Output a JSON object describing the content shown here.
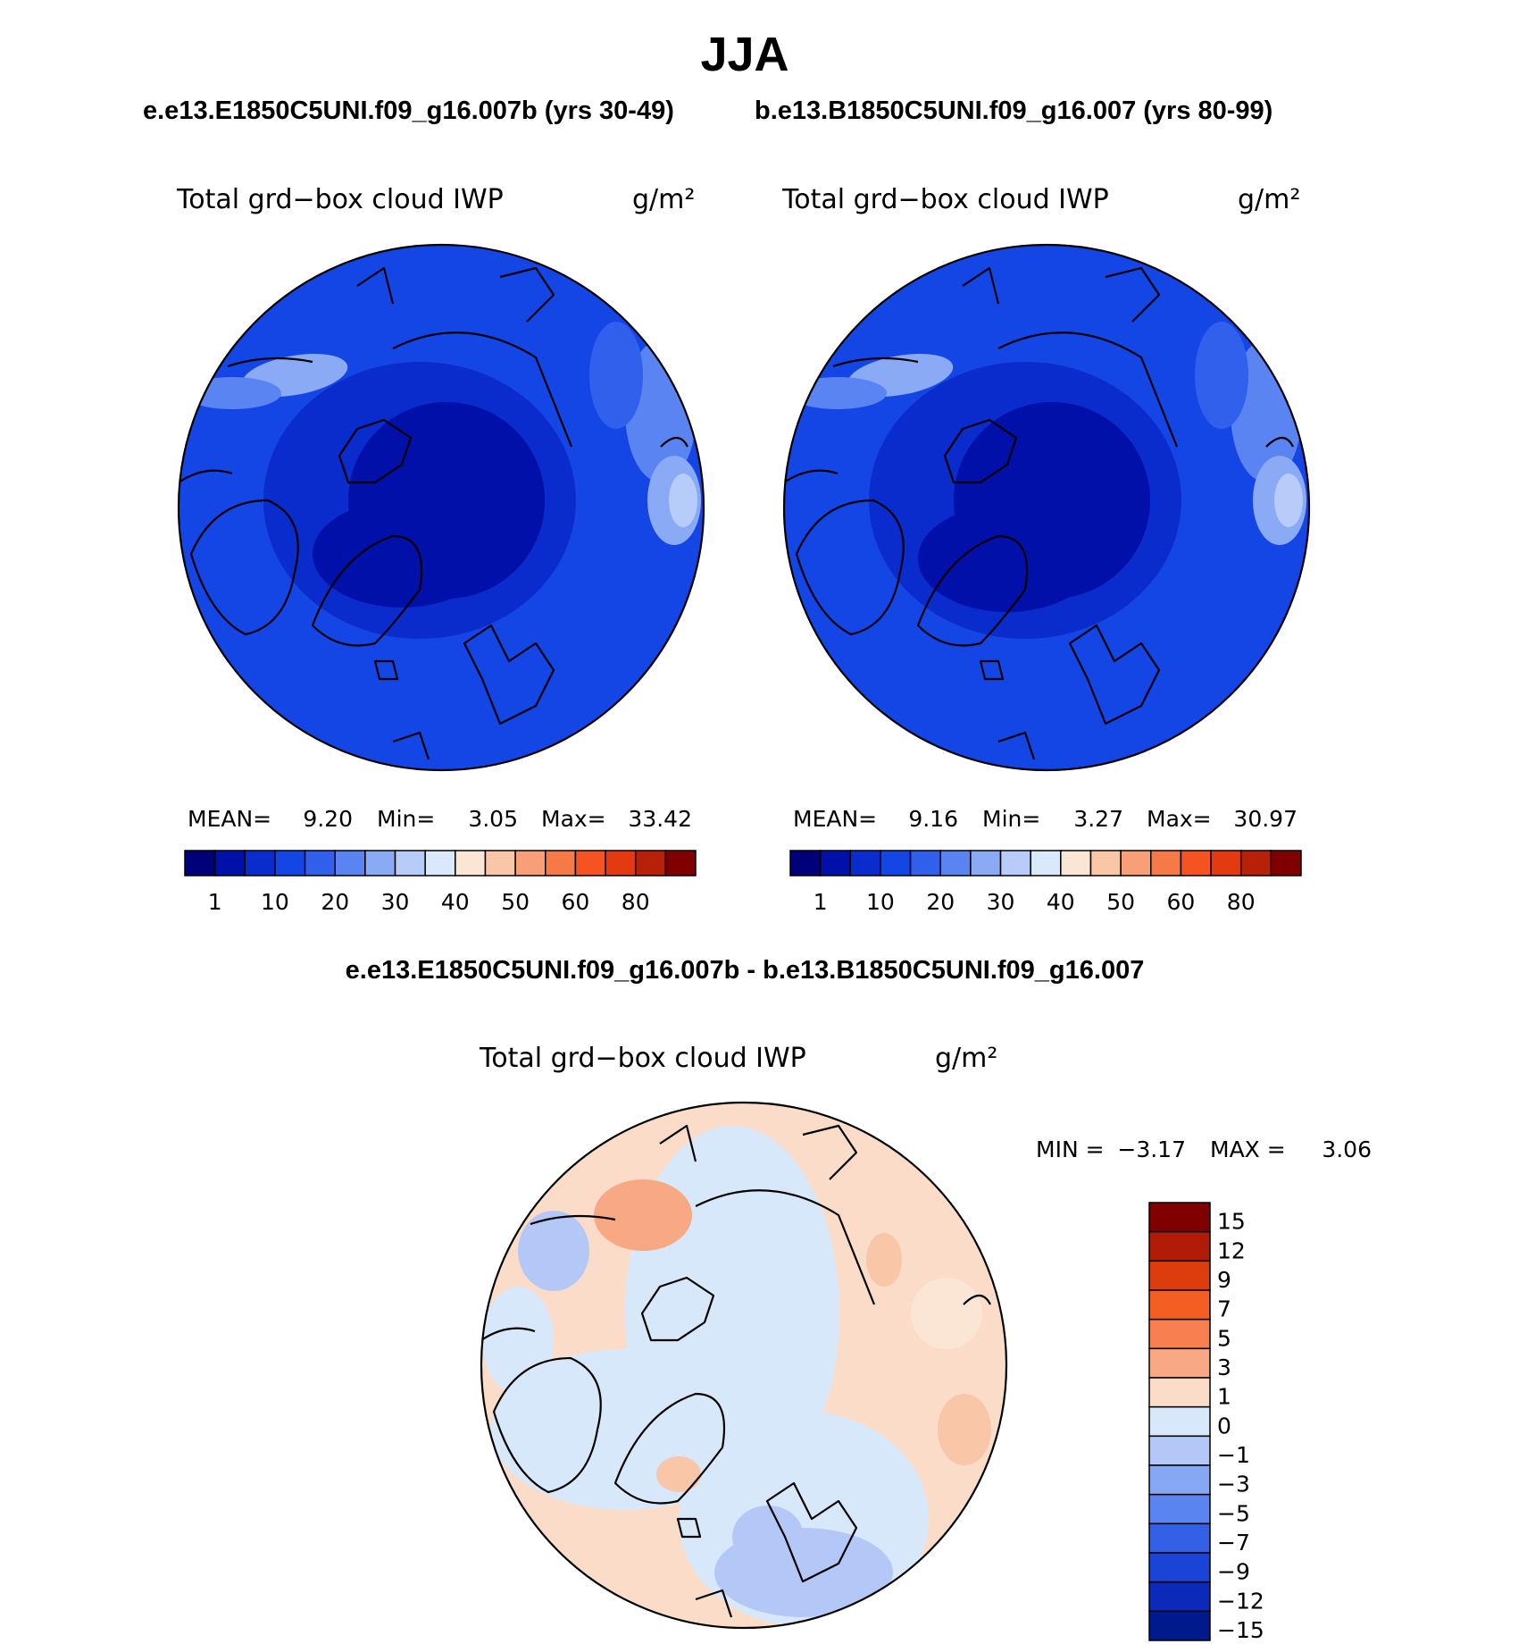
{
  "title": "JJA",
  "top_subtitle_left": "e.e13.E1850C5UNI.f09_g16.007b (yrs 30-49)",
  "top_subtitle_right": "b.e13.B1850C5UNI.f09_g16.007 (yrs 80-99)",
  "diff_subtitle": "e.e13.E1850C5UNI.f09_g16.007b - b.e13.B1850C5UNI.f09_g16.007",
  "abs_colors": [
    "#00007a",
    "#0010a8",
    "#0a2ccc",
    "#1446e6",
    "#3060ec",
    "#5a84f2",
    "#8aaaf6",
    "#b8ccfa",
    "#dae8fb",
    "#fbe6d6",
    "#f9c6a8",
    "#f89e78",
    "#f67a48",
    "#f65322",
    "#e43a10",
    "#b82008",
    "#800000"
  ],
  "diff_colors": [
    "#800000",
    "#b01c08",
    "#dd3c0c",
    "#f55e22",
    "#f88050",
    "#f9a884",
    "#fbdcc8",
    "#d8e8fb",
    "#b4c8f7",
    "#86a8f4",
    "#5a84ef",
    "#3460e6",
    "#1a44d6",
    "#0c2aba",
    "#001a8e"
  ],
  "chart_data": [
    {
      "type": "heatmap",
      "projection": "north polar stereographic",
      "title": "Total grd−box cloud IWP",
      "units": "g/m²",
      "mean_label": "MEAN=",
      "mean": "9.20",
      "min_label": "Min=",
      "min": "3.05",
      "max_label": "Max=",
      "max": "33.42",
      "colorbar_orientation": "horizontal",
      "colorbar_ticks": [
        "1",
        "10",
        "20",
        "30",
        "40",
        "50",
        "60",
        "80"
      ]
    },
    {
      "type": "heatmap",
      "projection": "north polar stereographic",
      "title": "Total grd−box cloud IWP",
      "units": "g/m²",
      "mean_label": "MEAN=",
      "mean": "9.16",
      "min_label": "Min=",
      "min": "3.27",
      "max_label": "Max=",
      "max": "30.97",
      "colorbar_orientation": "horizontal",
      "colorbar_ticks": [
        "1",
        "10",
        "20",
        "30",
        "40",
        "50",
        "60",
        "80"
      ]
    },
    {
      "type": "heatmap",
      "projection": "north polar stereographic",
      "title": "Total grd−box cloud IWP",
      "units": "g/m²",
      "min_label": "MIN =",
      "min": "−3.17",
      "max_label": "MAX =",
      "max": "3.06",
      "colorbar_orientation": "vertical",
      "colorbar_ticks": [
        "15",
        "12",
        "9",
        "7",
        "5",
        "3",
        "1",
        "0",
        "−1",
        "−3",
        "−5",
        "−7",
        "−9",
        "−12",
        "−15"
      ]
    }
  ]
}
